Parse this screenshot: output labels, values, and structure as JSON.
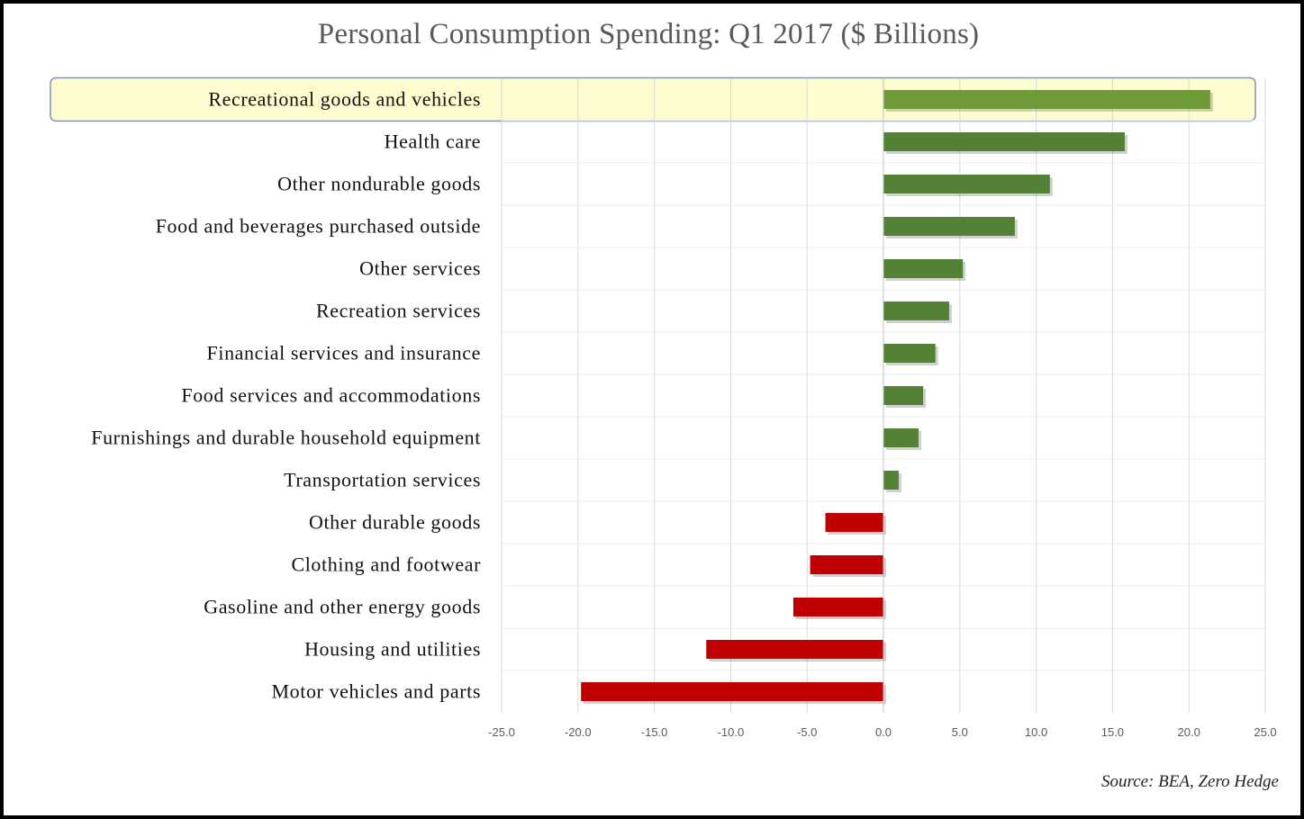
{
  "chart_data": {
    "type": "bar",
    "orientation": "horizontal",
    "title": "Personal Consumption Spending: Q1 2017 ($ Billions)",
    "xlabel": "",
    "ylabel": "",
    "xlim": [
      -25,
      25
    ],
    "x_ticks": [
      -25,
      -20,
      -15,
      -10,
      -5,
      0,
      5,
      10,
      15,
      20,
      25
    ],
    "x_tick_labels": [
      "-25.0",
      "-20.0",
      "-15.0",
      "-10.0",
      "-5.0",
      "0.0",
      "5.0",
      "10.0",
      "15.0",
      "20.0",
      "25.0"
    ],
    "grid": true,
    "categories": [
      "Recreational goods and vehicles",
      "Health care",
      "Other nondurable goods",
      "Food and beverages purchased outside",
      "Other services",
      "Recreation services",
      "Financial services and insurance",
      "Food services and accommodations",
      "Furnishings and durable household equipment",
      "Transportation services",
      "Other durable goods",
      "Clothing and footwear",
      "Gasoline and other energy goods",
      "Housing and utilities",
      "Motor vehicles and parts"
    ],
    "values": [
      21.4,
      15.8,
      10.9,
      8.6,
      5.2,
      4.3,
      3.4,
      2.6,
      2.3,
      1.0,
      -3.8,
      -4.8,
      -5.9,
      -11.6,
      -19.8
    ],
    "highlighted_category": "Recreational goods and vehicles",
    "colors": {
      "positive": "#538135",
      "positive_highlight": "#6f9a3a",
      "negative": "#c00000",
      "highlight_fill": "#fdfdd0",
      "highlight_border": "#7f93b5",
      "grid": "#d9d9d9",
      "tick_label": "#595959"
    }
  },
  "source": "Source: BEA,  Zero Hedge"
}
